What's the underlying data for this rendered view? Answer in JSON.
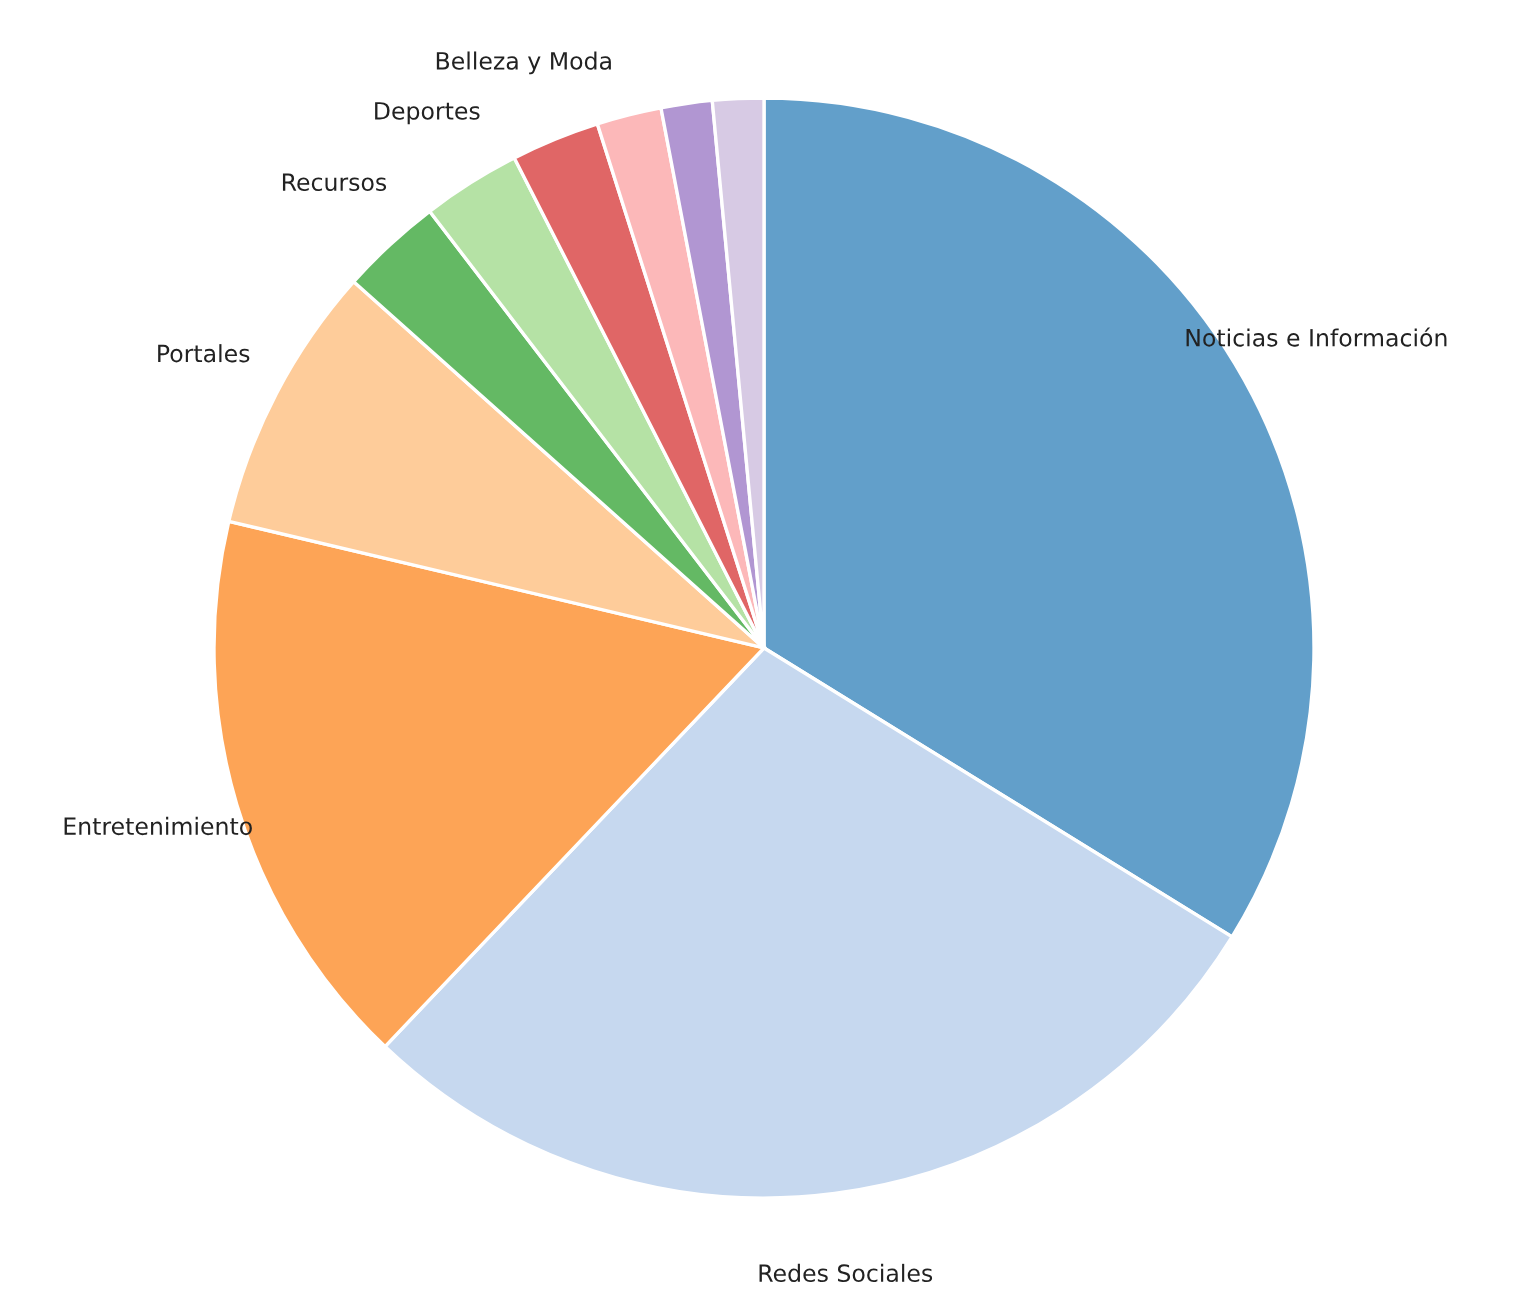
{
  "chart_data": {
    "type": "pie",
    "categories": [
      "Noticias e Información",
      "Redes Sociales",
      "Entretenimiento",
      "Portales",
      "Recursos",
      "Deportes",
      "Belleza y Moda",
      null,
      null,
      null
    ],
    "values": [
      33.8,
      28.3,
      16.6,
      7.9,
      3.0,
      2.9,
      2.6,
      1.9,
      1.5,
      1.5
    ],
    "colors": [
      "#629fca",
      "#c6d8ef",
      "#fda456",
      "#fecc9a",
      "#64b964",
      "#b5e2a5",
      "#e06666",
      "#fcb8b9",
      "#b196d2",
      "#d7cae4"
    ]
  }
}
